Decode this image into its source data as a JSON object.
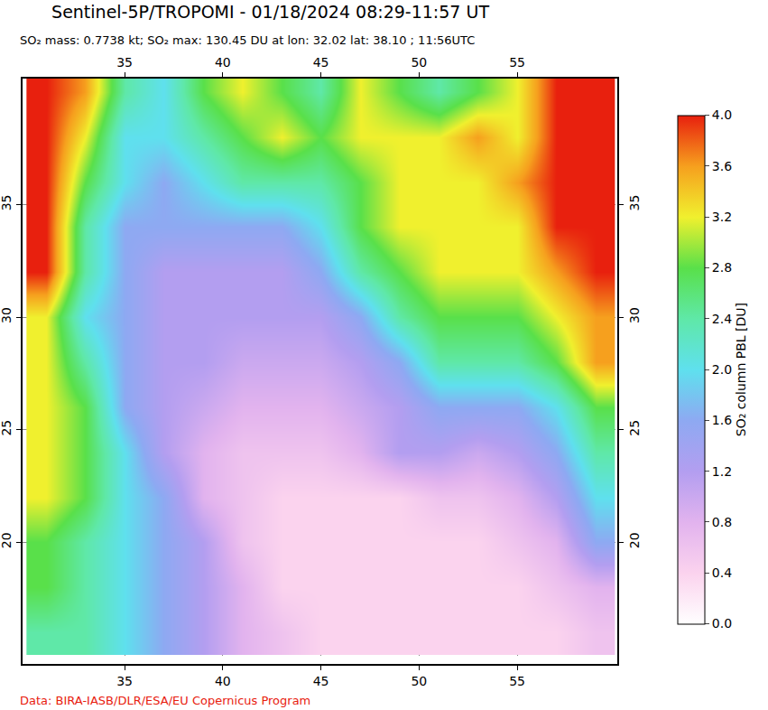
{
  "chart_data": {
    "type": "heatmap",
    "title": "Sentinel-5P/TROPOMI - 01/18/2024 08:29-11:57 UT",
    "subtitle": "SO₂ mass: 0.7738 kt; SO₂ max: 130.45 DU at lon: 32.02 lat: 38.10 ; 11:56UTC",
    "annotations": [
      "Data: BIRA-IASB/DLR/ESA/EU Copernicus Program"
    ],
    "x": [
      31,
      33,
      35,
      37,
      39,
      41,
      43,
      45,
      47,
      49,
      51,
      53,
      55,
      57,
      59
    ],
    "y": [
      16,
      18,
      20,
      22,
      24,
      26,
      28,
      30,
      32,
      34,
      36,
      38,
      40
    ],
    "z": [
      [
        2.4,
        2.4,
        2.0,
        1.6,
        1.2,
        0.8,
        0.6,
        0.4,
        0.4,
        0.4,
        0.4,
        0.4,
        0.4,
        0.4,
        0.6
      ],
      [
        2.8,
        2.4,
        2.0,
        1.6,
        1.2,
        0.8,
        0.4,
        0.4,
        0.4,
        0.4,
        0.4,
        0.4,
        0.4,
        0.6,
        0.8
      ],
      [
        2.8,
        2.4,
        2.0,
        1.6,
        1.2,
        0.6,
        0.4,
        0.4,
        0.4,
        0.4,
        0.4,
        0.4,
        0.6,
        0.8,
        1.6
      ],
      [
        3.2,
        2.8,
        2.0,
        1.6,
        0.8,
        0.6,
        0.4,
        0.4,
        0.4,
        0.4,
        0.6,
        0.6,
        0.8,
        1.2,
        2.0
      ],
      [
        3.2,
        2.8,
        2.0,
        1.2,
        0.8,
        0.6,
        0.6,
        0.6,
        0.8,
        1.2,
        1.2,
        1.0,
        1.2,
        1.6,
        2.4
      ],
      [
        3.2,
        2.8,
        1.6,
        1.2,
        1.0,
        0.8,
        0.8,
        0.8,
        1.0,
        1.2,
        1.6,
        1.6,
        1.6,
        2.0,
        2.8
      ],
      [
        3.2,
        2.4,
        1.6,
        1.2,
        1.2,
        1.0,
        1.0,
        1.0,
        1.2,
        1.6,
        2.4,
        2.4,
        2.4,
        2.8,
        3.6
      ],
      [
        3.2,
        2.0,
        1.6,
        1.2,
        1.2,
        1.2,
        1.2,
        1.2,
        1.6,
        2.4,
        2.8,
        2.8,
        2.8,
        3.2,
        3.6
      ],
      [
        4.0,
        2.4,
        1.6,
        1.2,
        1.2,
        1.2,
        1.2,
        1.6,
        2.4,
        2.8,
        3.2,
        3.2,
        3.2,
        3.6,
        4.0
      ],
      [
        4.0,
        2.4,
        1.6,
        1.6,
        1.6,
        1.6,
        1.6,
        2.0,
        2.8,
        3.2,
        3.2,
        3.2,
        3.2,
        4.0,
        4.0
      ],
      [
        4.0,
        2.8,
        2.0,
        1.6,
        2.0,
        2.4,
        2.4,
        2.4,
        2.8,
        3.2,
        3.2,
        3.2,
        3.6,
        4.0,
        4.0
      ],
      [
        4.0,
        3.2,
        2.0,
        2.0,
        2.4,
        2.8,
        3.2,
        2.8,
        3.2,
        3.2,
        3.2,
        3.6,
        3.2,
        4.0,
        4.0
      ],
      [
        4.0,
        3.6,
        2.4,
        2.0,
        2.8,
        3.2,
        2.8,
        2.4,
        3.2,
        2.8,
        2.4,
        2.8,
        3.2,
        4.0,
        4.0
      ]
    ],
    "xlim": [
      29.8,
      60.1
    ],
    "ylim": [
      14.6,
      40.6
    ],
    "xticks": [
      35,
      40,
      45,
      50,
      55
    ],
    "yticks": [
      20,
      25,
      30,
      35
    ],
    "grid": true,
    "colorbar": {
      "title": "SO₂ column PBL [DU]",
      "range": [
        0,
        4
      ],
      "ticks": [
        {
          "value": 0,
          "label": "0.0"
        },
        {
          "value": 0.4,
          "label": "0.4"
        },
        {
          "value": 0.8,
          "label": "0.8"
        },
        {
          "value": 1.2,
          "label": "1.2"
        },
        {
          "value": 1.6,
          "label": "1.6"
        },
        {
          "value": 2.0,
          "label": "2.0"
        },
        {
          "value": 2.4,
          "label": "2.4"
        },
        {
          "value": 2.8,
          "label": "2.8"
        },
        {
          "value": 3.2,
          "label": "3.2"
        },
        {
          "value": 3.6,
          "label": "3.6"
        },
        {
          "value": 4,
          "label": "4.0"
        }
      ]
    }
  }
}
